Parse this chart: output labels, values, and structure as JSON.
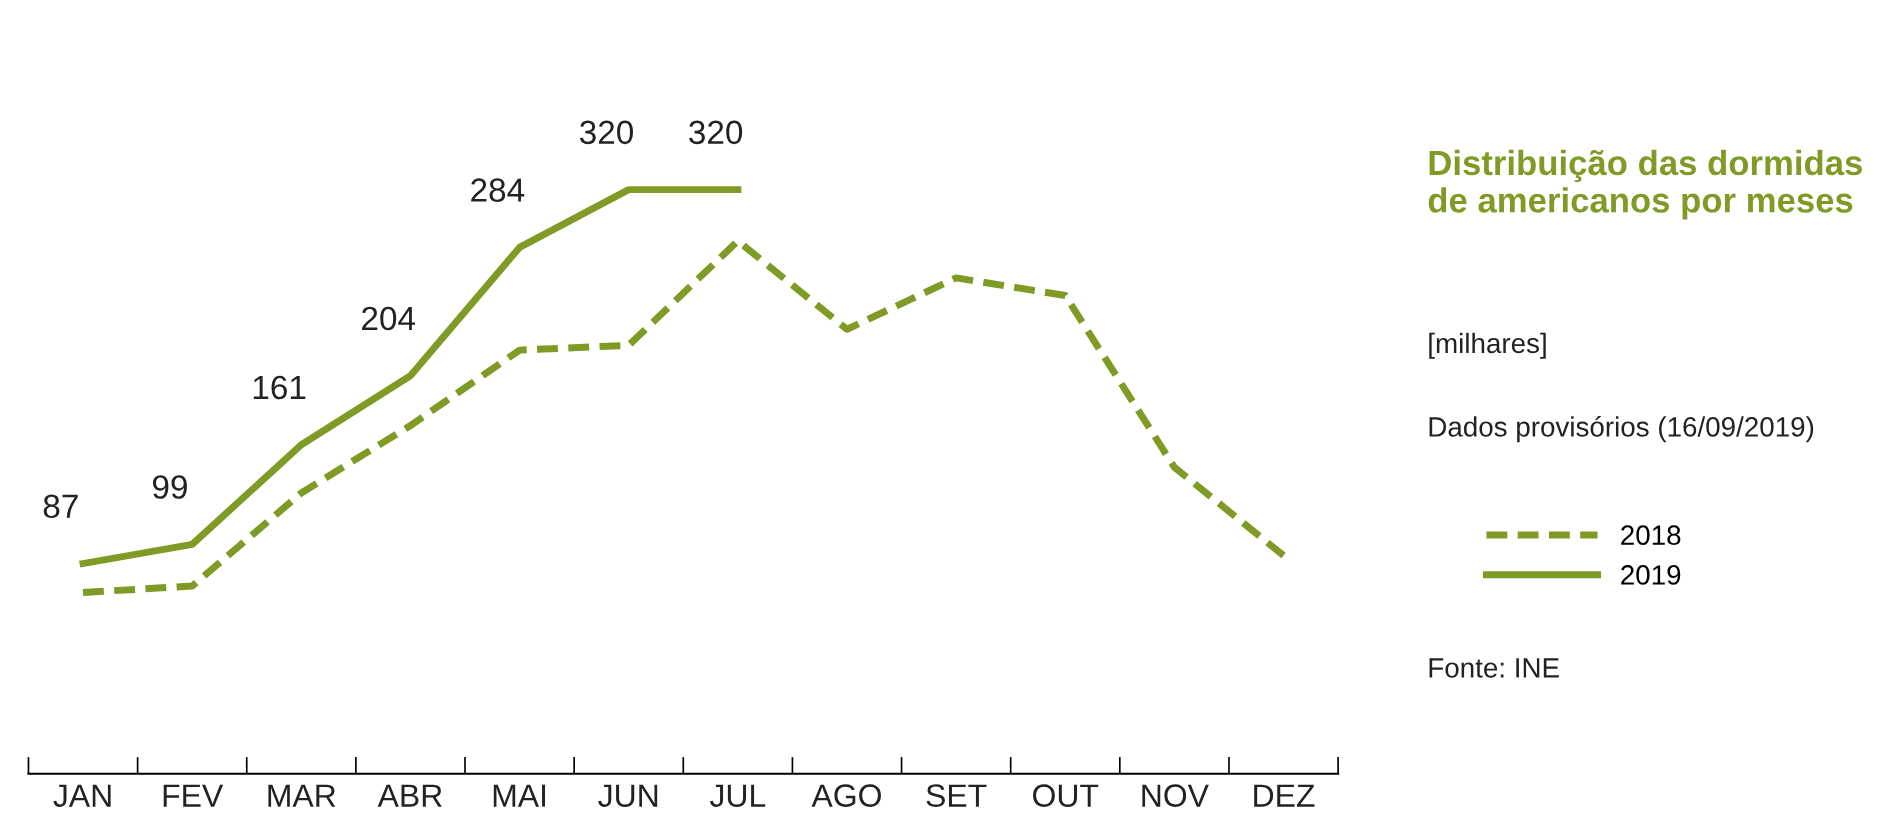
{
  "chart_data": {
    "type": "line",
    "title": "Distribuição das dormidas de americanos por meses",
    "annotations": [
      "[milhares]",
      "Dados provisórios (16/09/2019)",
      "Fonte: INE"
    ],
    "categories": [
      "JAN",
      "FEV",
      "MAR",
      "ABR",
      "MAI",
      "JUN",
      "JUL",
      "AGO",
      "SET",
      "OUT",
      "NOV",
      "DEZ"
    ],
    "series": [
      {
        "name": "2018",
        "color": "#7f9a25",
        "line_style": "dashed",
        "values": [
          69,
          73,
          131,
          173,
          220,
          223,
          288,
          233,
          265,
          254,
          147,
          92
        ]
      },
      {
        "name": "2019",
        "color": "#7f9a25",
        "line_style": "solid",
        "values": [
          87,
          99,
          161,
          204,
          284,
          320,
          320,
          null,
          null,
          null,
          null,
          null
        ],
        "value_labels": [
          "87",
          "99",
          "161",
          "204",
          "284",
          "320",
          "320",
          null,
          null,
          null,
          null,
          null
        ]
      }
    ],
    "tick_labels": "x",
    "grid": false,
    "legend": "right",
    "marker": "none"
  }
}
